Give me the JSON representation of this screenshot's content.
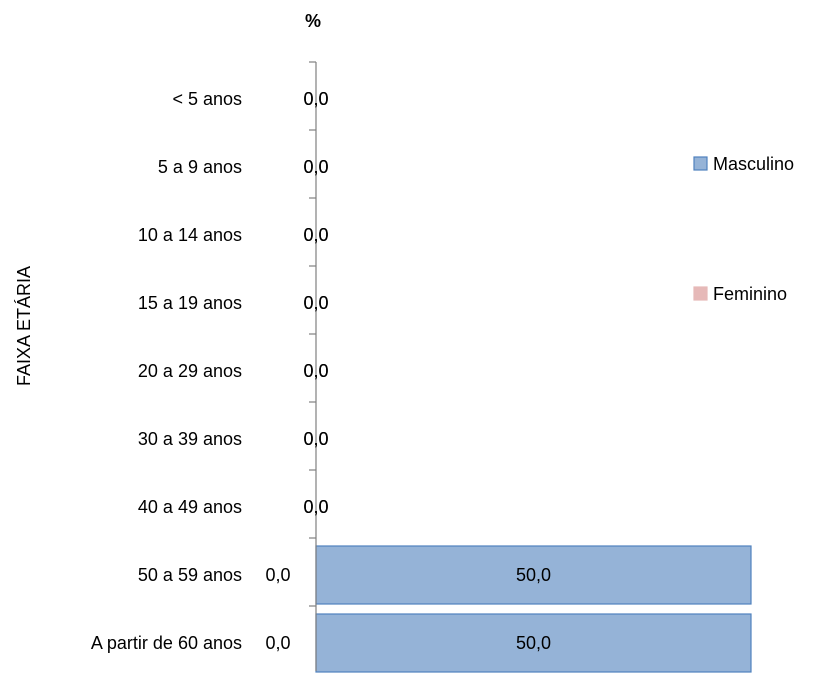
{
  "chart_data": {
    "type": "bar",
    "orientation": "horizontal",
    "layout": "butterfly",
    "unit_label": "%",
    "ylabel": "FAIXA ETÁRIA",
    "categories": [
      "< 5 anos",
      "5 a 9 anos",
      "10 a 14 anos",
      "15 a 19 anos",
      "20 a 29 anos",
      "30 a 39 anos",
      "40 a 49 anos",
      "50 a 59 anos",
      "A partir de 60 anos"
    ],
    "series": [
      {
        "name": "Masculino",
        "color": "#95B3D7",
        "border": "#4F81BD",
        "values": [
          0.0,
          0.0,
          0.0,
          0.0,
          0.0,
          0.0,
          0.0,
          50.0,
          50.0
        ],
        "value_labels": [
          "0,0",
          "0,0",
          "0,0",
          "0,0",
          "0,0",
          "0,0",
          "0,0",
          "50,0",
          "50,0"
        ]
      },
      {
        "name": "Feminino",
        "color": "#E6B9B8",
        "border": "#E6B9B8",
        "values": [
          0.0,
          0.0,
          0.0,
          0.0,
          0.0,
          0.0,
          0.0,
          0.0,
          0.0
        ],
        "value_labels": [
          "0,0",
          "0,0",
          "0,0",
          "0,0",
          "0,0",
          "0,0",
          "0,0",
          "0,0",
          "0,0"
        ]
      }
    ],
    "xlim": [
      -50,
      50
    ],
    "legend_position": "right",
    "grid": false
  }
}
